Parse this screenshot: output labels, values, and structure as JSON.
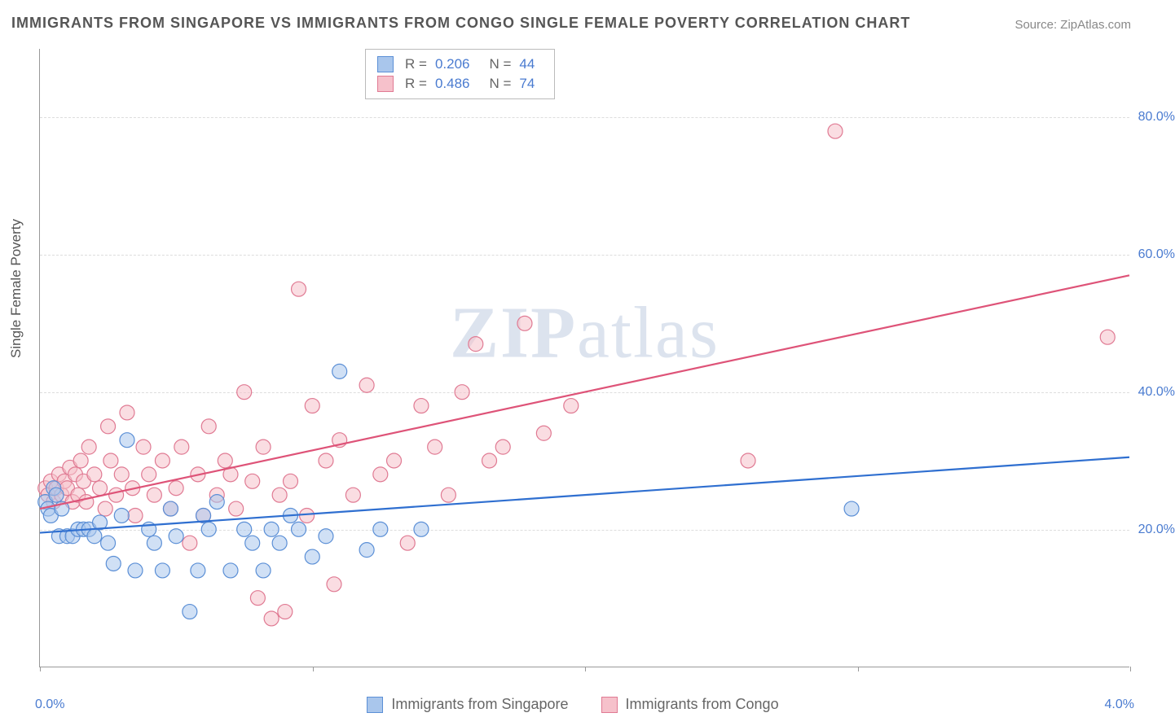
{
  "title": "IMMIGRANTS FROM SINGAPORE VS IMMIGRANTS FROM CONGO SINGLE FEMALE POVERTY CORRELATION CHART",
  "source_label": "Source: ZipAtlas.com",
  "y_axis_label": "Single Female Poverty",
  "watermark": {
    "bold": "ZIP",
    "light": "atlas"
  },
  "chart": {
    "type": "scatter",
    "xlim": [
      0,
      4
    ],
    "ylim": [
      0,
      90
    ],
    "y_ticks": [
      20,
      40,
      60,
      80
    ],
    "y_tick_labels": [
      "20.0%",
      "40.0%",
      "60.0%",
      "80.0%"
    ],
    "x_ticks": [
      0,
      1,
      2,
      3,
      4
    ],
    "x_tick_labels": [
      "0.0%",
      "",
      "",
      "",
      "4.0%"
    ],
    "background_color": "#ffffff",
    "grid_color": "#dddddd",
    "border_color": "#999999",
    "marker_radius": 9,
    "marker_opacity": 0.55,
    "series": [
      {
        "name": "Immigrants from Singapore",
        "color_fill": "#a9c6ec",
        "color_stroke": "#5b8fd6",
        "r_value": "0.206",
        "n_value": "44",
        "regression": {
          "x1": 0,
          "y1": 19.5,
          "x2": 4,
          "y2": 30.5,
          "color": "#2f6fd0",
          "width": 2.2
        },
        "points": [
          [
            0.02,
            24
          ],
          [
            0.03,
            23
          ],
          [
            0.04,
            22
          ],
          [
            0.05,
            26
          ],
          [
            0.06,
            25
          ],
          [
            0.08,
            23
          ],
          [
            0.07,
            19
          ],
          [
            0.1,
            19
          ],
          [
            0.12,
            19
          ],
          [
            0.14,
            20
          ],
          [
            0.16,
            20
          ],
          [
            0.18,
            20
          ],
          [
            0.2,
            19
          ],
          [
            0.22,
            21
          ],
          [
            0.25,
            18
          ],
          [
            0.27,
            15
          ],
          [
            0.3,
            22
          ],
          [
            0.32,
            33
          ],
          [
            0.35,
            14
          ],
          [
            0.4,
            20
          ],
          [
            0.42,
            18
          ],
          [
            0.45,
            14
          ],
          [
            0.48,
            23
          ],
          [
            0.5,
            19
          ],
          [
            0.55,
            8
          ],
          [
            0.58,
            14
          ],
          [
            0.6,
            22
          ],
          [
            0.62,
            20
          ],
          [
            0.65,
            24
          ],
          [
            0.7,
            14
          ],
          [
            0.75,
            20
          ],
          [
            0.78,
            18
          ],
          [
            0.82,
            14
          ],
          [
            0.85,
            20
          ],
          [
            0.88,
            18
          ],
          [
            0.92,
            22
          ],
          [
            0.95,
            20
          ],
          [
            1.0,
            16
          ],
          [
            1.05,
            19
          ],
          [
            1.1,
            43
          ],
          [
            1.2,
            17
          ],
          [
            1.25,
            20
          ],
          [
            1.4,
            20
          ],
          [
            2.98,
            23
          ]
        ]
      },
      {
        "name": "Immigrants from Congo",
        "color_fill": "#f6c1cb",
        "color_stroke": "#e07a93",
        "r_value": "0.486",
        "n_value": "74",
        "regression": {
          "x1": 0,
          "y1": 23,
          "x2": 4,
          "y2": 57,
          "color": "#de5378",
          "width": 2.2
        },
        "points": [
          [
            0.02,
            26
          ],
          [
            0.03,
            25
          ],
          [
            0.04,
            27
          ],
          [
            0.05,
            24
          ],
          [
            0.06,
            26
          ],
          [
            0.07,
            28
          ],
          [
            0.08,
            25
          ],
          [
            0.09,
            27
          ],
          [
            0.1,
            26
          ],
          [
            0.11,
            29
          ],
          [
            0.12,
            24
          ],
          [
            0.13,
            28
          ],
          [
            0.14,
            25
          ],
          [
            0.15,
            30
          ],
          [
            0.16,
            27
          ],
          [
            0.17,
            24
          ],
          [
            0.18,
            32
          ],
          [
            0.2,
            28
          ],
          [
            0.22,
            26
          ],
          [
            0.24,
            23
          ],
          [
            0.25,
            35
          ],
          [
            0.26,
            30
          ],
          [
            0.28,
            25
          ],
          [
            0.3,
            28
          ],
          [
            0.32,
            37
          ],
          [
            0.34,
            26
          ],
          [
            0.35,
            22
          ],
          [
            0.38,
            32
          ],
          [
            0.4,
            28
          ],
          [
            0.42,
            25
          ],
          [
            0.45,
            30
          ],
          [
            0.48,
            23
          ],
          [
            0.5,
            26
          ],
          [
            0.52,
            32
          ],
          [
            0.55,
            18
          ],
          [
            0.58,
            28
          ],
          [
            0.6,
            22
          ],
          [
            0.62,
            35
          ],
          [
            0.65,
            25
          ],
          [
            0.68,
            30
          ],
          [
            0.7,
            28
          ],
          [
            0.72,
            23
          ],
          [
            0.75,
            40
          ],
          [
            0.78,
            27
          ],
          [
            0.8,
            10
          ],
          [
            0.82,
            32
          ],
          [
            0.85,
            7
          ],
          [
            0.88,
            25
          ],
          [
            0.9,
            8
          ],
          [
            0.92,
            27
          ],
          [
            0.95,
            55
          ],
          [
            0.98,
            22
          ],
          [
            1.0,
            38
          ],
          [
            1.05,
            30
          ],
          [
            1.08,
            12
          ],
          [
            1.1,
            33
          ],
          [
            1.15,
            25
          ],
          [
            1.2,
            41
          ],
          [
            1.25,
            28
          ],
          [
            1.3,
            30
          ],
          [
            1.35,
            18
          ],
          [
            1.4,
            38
          ],
          [
            1.45,
            32
          ],
          [
            1.5,
            25
          ],
          [
            1.55,
            40
          ],
          [
            1.6,
            47
          ],
          [
            1.65,
            30
          ],
          [
            1.7,
            32
          ],
          [
            1.78,
            50
          ],
          [
            1.85,
            34
          ],
          [
            1.95,
            38
          ],
          [
            2.6,
            30
          ],
          [
            2.92,
            78
          ],
          [
            3.92,
            48
          ]
        ]
      }
    ]
  },
  "legend_top": {
    "r_label": "R =",
    "n_label": "N ="
  },
  "legend_bottom_labels": [
    "Immigrants from Singapore",
    "Immigrants from Congo"
  ]
}
